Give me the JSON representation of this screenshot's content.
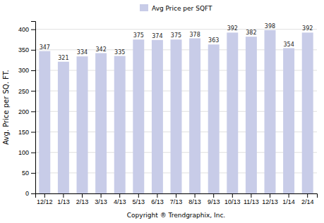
{
  "chart_data": {
    "type": "bar",
    "categories": [
      "12/12",
      "1/13",
      "2/13",
      "3/13",
      "4/13",
      "5/13",
      "6/13",
      "7/13",
      "8/13",
      "9/13",
      "10/13",
      "11/13",
      "12/13",
      "1/14",
      "2/14"
    ],
    "series": [
      {
        "name": "Avg Price per SQFT",
        "color": "#c8cce8",
        "values": [
          347,
          321,
          334,
          342,
          335,
          375,
          374,
          375,
          378,
          363,
          392,
          382,
          398,
          354,
          392
        ]
      }
    ],
    "ylabel": "Avg. Price per SQ. FT.",
    "xlabel": "Copyright ® Trendgraphix, Inc.",
    "ylim": [
      0,
      420
    ],
    "yticks": [
      0,
      50,
      100,
      150,
      200,
      250,
      300,
      350,
      400
    ],
    "grid": true,
    "legend": "top",
    "data_labels": true
  }
}
